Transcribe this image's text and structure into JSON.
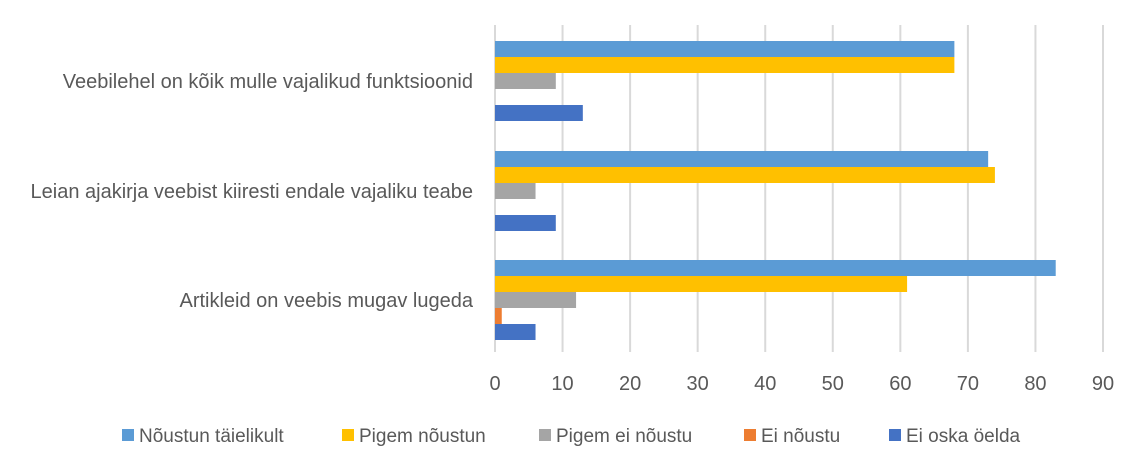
{
  "chart_data": {
    "type": "bar",
    "orientation": "horizontal",
    "title": "",
    "xlabel": "",
    "ylabel": "",
    "xlim": [
      0,
      90
    ],
    "x_ticks": [
      0,
      10,
      20,
      30,
      40,
      50,
      60,
      70,
      80,
      90
    ],
    "grid": true,
    "legend_position": "bottom",
    "categories": [
      "Veebilehel on kõik mulle vajalikud funktsioonid",
      "Leian ajakirja veebist kiiresti endale vajaliku teabe",
      "Artikleid on veebis mugav lugeda"
    ],
    "series": [
      {
        "name": "Nõustun täielikult",
        "color": "#5B9BD5",
        "values": [
          68,
          73,
          83
        ]
      },
      {
        "name": "Pigem nõustun",
        "color": "#FFC000",
        "values": [
          68,
          74,
          61
        ]
      },
      {
        "name": "Pigem ei nõustu",
        "color": "#A5A5A5",
        "values": [
          9,
          6,
          12
        ]
      },
      {
        "name": "Ei nõustu",
        "color": "#ED7D31",
        "values": [
          0,
          0,
          1
        ]
      },
      {
        "name": "Ei oska öelda",
        "color": "#4472C4",
        "values": [
          13,
          9,
          6
        ]
      }
    ]
  }
}
